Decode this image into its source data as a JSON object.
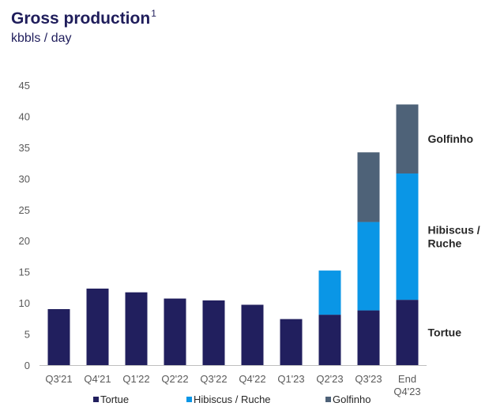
{
  "title": "Gross production",
  "title_superscript": "1",
  "subtitle": "kbbls / day",
  "chart_data": {
    "type": "bar",
    "stacked": true,
    "categories": [
      [
        "Q3'21"
      ],
      [
        "Q4'21"
      ],
      [
        "Q1'22"
      ],
      [
        "Q2'22"
      ],
      [
        "Q3'22"
      ],
      [
        "Q4'22"
      ],
      [
        "Q1'23"
      ],
      [
        "Q2'23"
      ],
      [
        "Q3'23"
      ],
      [
        "End",
        "Q4'23"
      ]
    ],
    "series": [
      {
        "name": "Tortue",
        "color": "#211f5e",
        "values": [
          9.0,
          12.3,
          11.7,
          10.7,
          10.4,
          9.7,
          7.4,
          8.1,
          8.8,
          10.5
        ]
      },
      {
        "name": "Hibiscus / Ruche",
        "color": "#0a96e6",
        "values": [
          0,
          0,
          0,
          0,
          0,
          0,
          0,
          7.1,
          14.2,
          20.3
        ]
      },
      {
        "name": "Golfinho",
        "color": "#4e6278",
        "values": [
          0,
          0,
          0,
          0,
          0,
          0,
          0,
          0,
          11.2,
          11.1
        ]
      }
    ],
    "ylim": [
      0,
      45
    ],
    "yticks": [
      0,
      5,
      10,
      15,
      20,
      25,
      30,
      35,
      40,
      45
    ],
    "grid": false,
    "segment_labels": [
      {
        "lines": [
          "Golfinho"
        ],
        "series": 2
      },
      {
        "lines": [
          "Hibiscus /",
          "Ruche"
        ],
        "series": 1
      },
      {
        "lines": [
          "Tortue"
        ],
        "series": 0
      }
    ],
    "legend": {
      "position": "bottom",
      "entries": [
        "Tortue",
        "Hibiscus / Ruche",
        "Golfinho"
      ]
    }
  }
}
